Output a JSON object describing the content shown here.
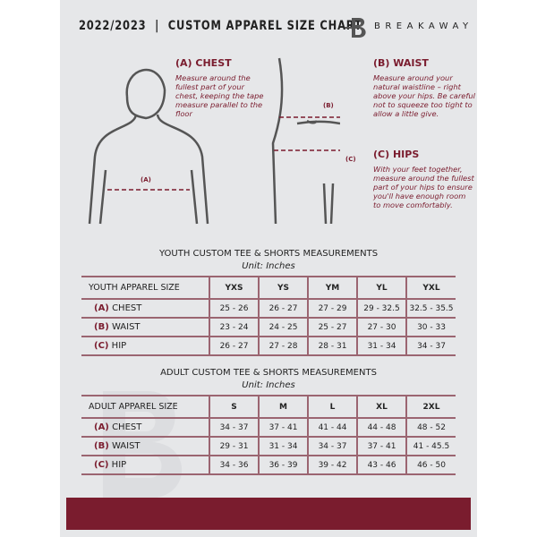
{
  "header": {
    "title": "2022/2023  |  CUSTOM APPAREL SIZE CHART",
    "brand": "BREAKAWAY",
    "logo_letter": "B"
  },
  "guides": {
    "chest": {
      "heading": "(A) CHEST",
      "text": "Measure around the fullest part of your chest, keeping the tape measure parallel to the floor",
      "marker": "(A)"
    },
    "waist": {
      "heading": "(B) WAIST",
      "text": "Measure around your natural waistline – right above your hips. Be careful not to squeeze too tight to allow a little give.",
      "marker": "(B)"
    },
    "hips": {
      "heading": "(C) HIPS",
      "text": "With your feet together, measure around the fullest part of your hips to ensure you'll have enough room to move comfortably.",
      "marker": "(C)"
    }
  },
  "youth": {
    "title": "YOUTH CUSTOM TEE & SHORTS MEASUREMENTS",
    "unit": "Unit: Inches",
    "header": [
      "YOUTH APPAREL SIZE",
      "YXS",
      "YS",
      "YM",
      "YL",
      "YXL"
    ],
    "rows": [
      {
        "letter": "(A)",
        "label": "CHEST",
        "values": [
          "25 - 26",
          "26 - 27",
          "27 - 29",
          "29 - 32.5",
          "32.5 - 35.5"
        ]
      },
      {
        "letter": "(B)",
        "label": "WAIST",
        "values": [
          "23 - 24",
          "24 - 25",
          "25 - 27",
          "27 - 30",
          "30 - 33"
        ]
      },
      {
        "letter": "(C)",
        "label": "HIP",
        "values": [
          "26 - 27",
          "27 - 28",
          "28 - 31",
          "31 - 34",
          "34 - 37"
        ]
      }
    ]
  },
  "adult": {
    "title": "ADULT CUSTOM TEE & SHORTS MEASUREMENTS",
    "unit": "Unit: Inches",
    "header": [
      "ADULT APPAREL SIZE",
      "S",
      "M",
      "L",
      "XL",
      "2XL"
    ],
    "rows": [
      {
        "letter": "(A)",
        "label": "CHEST",
        "values": [
          "34 - 37",
          "37 - 41",
          "41 - 44",
          "44 - 48",
          "48 - 52"
        ]
      },
      {
        "letter": "(B)",
        "label": "WAIST",
        "values": [
          "29 - 31",
          "31 - 34",
          "34 - 37",
          "37 - 41",
          "41 - 45.5"
        ]
      },
      {
        "letter": "(C)",
        "label": "HIP",
        "values": [
          "34 - 36",
          "36 - 39",
          "39 - 42",
          "43 - 46",
          "46 - 50"
        ]
      }
    ]
  },
  "colors": {
    "accent": "#7a1c2e",
    "panel": "#e6e7e9"
  }
}
